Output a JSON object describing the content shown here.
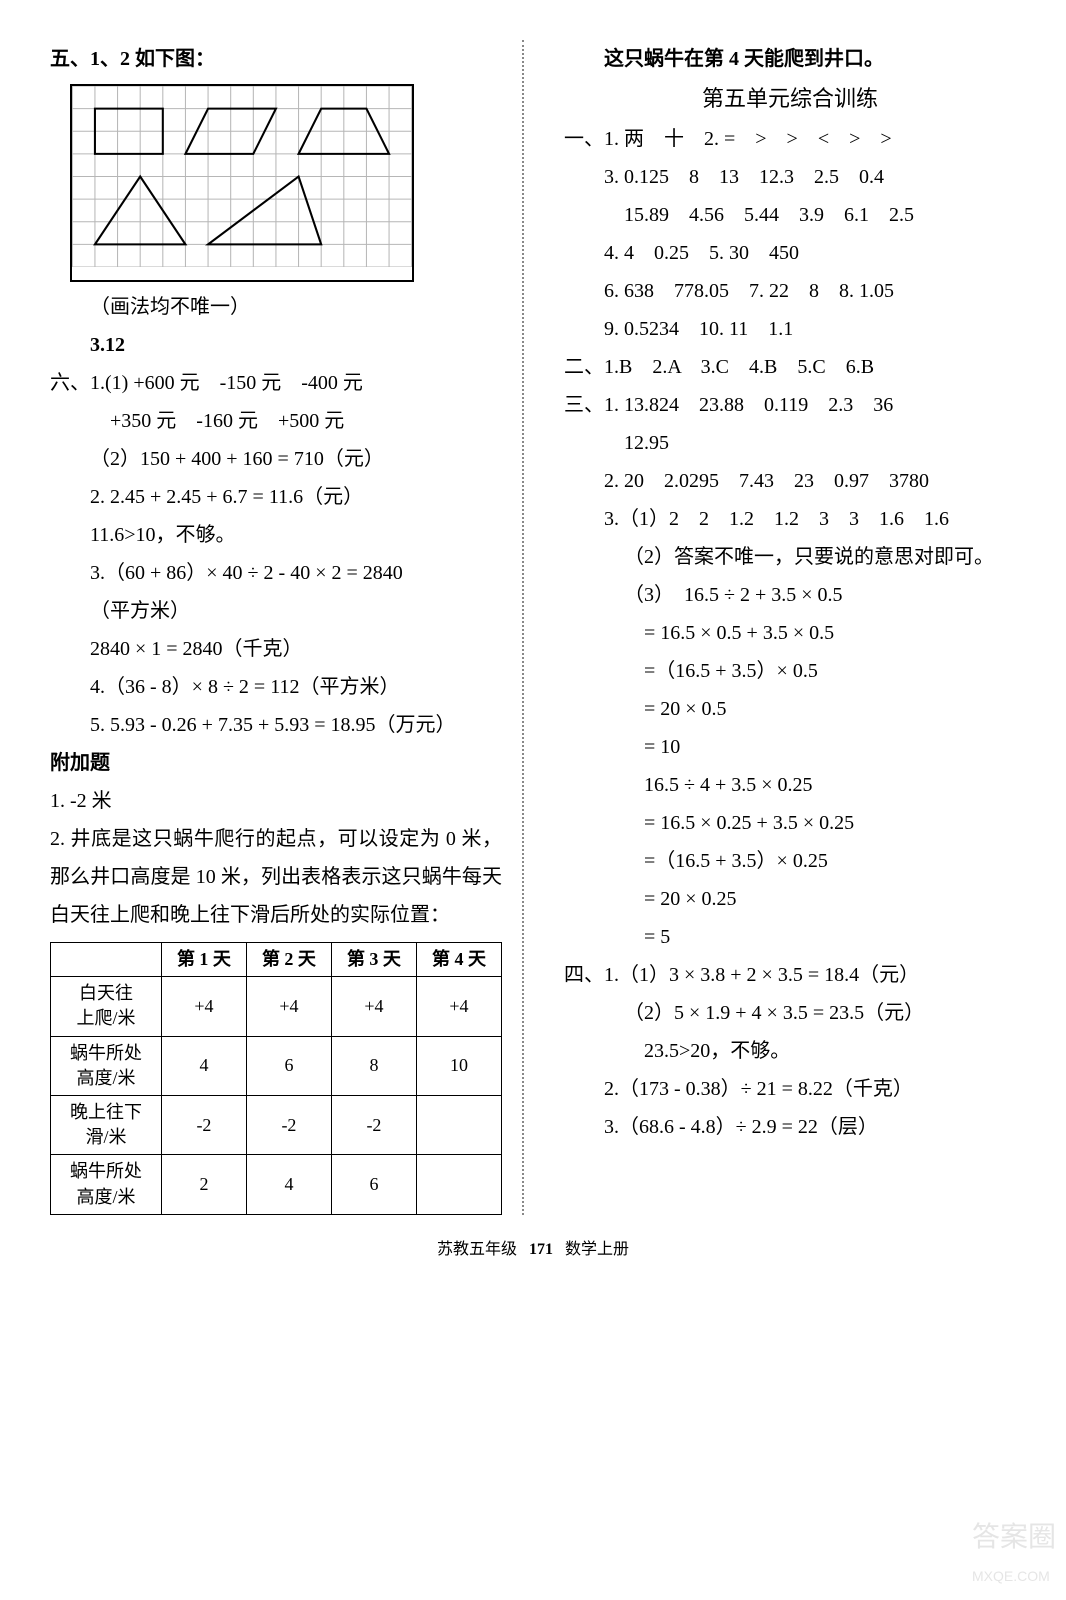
{
  "left": {
    "heading_five": "五、1、2 如下图：",
    "figure_note": "（画法均不唯一）",
    "item_3": "3.12",
    "section_six_head": "六、1.(1) +600 元　-150 元　-400 元",
    "six_1_line2": "+350 元　-160 元　+500 元",
    "six_1_2": "（2）150 + 400 + 160 = 710（元）",
    "six_2a": "2. 2.45 + 2.45 + 6.7 = 11.6（元）",
    "six_2b": "11.6>10，不够。",
    "six_3a": "3.（60 + 86）× 40 ÷ 2 - 40 × 2 = 2840",
    "six_3a_unit": "（平方米）",
    "six_3b": "2840 × 1 = 2840（千克）",
    "six_4": "4.（36 - 8）× 8 ÷ 2 = 112（平方米）",
    "six_5": "5. 5.93 - 0.26 + 7.35 + 5.93 = 18.95（万元）",
    "appendix_title": "附加题",
    "app_1": "1. -2 米",
    "app_2": "2. 井底是这只蜗牛爬行的起点，可以设定为 0 米，那么井口高度是 10 米，列出表格表示这只蜗牛每天白天往上爬和晚上往下滑后所处的实际位置：",
    "table": {
      "headers": [
        "",
        "第 1 天",
        "第 2 天",
        "第 3 天",
        "第 4 天"
      ],
      "rows": [
        [
          "白天往\n上爬/米",
          "+4",
          "+4",
          "+4",
          "+4"
        ],
        [
          "蜗牛所处\n高度/米",
          "4",
          "6",
          "8",
          "10"
        ],
        [
          "晚上往下\n滑/米",
          "-2",
          "-2",
          "-2",
          ""
        ],
        [
          "蜗牛所处\n高度/米",
          "2",
          "4",
          "6",
          ""
        ]
      ]
    },
    "grid": {
      "cols": 15,
      "rows": 8,
      "cell": 22,
      "stroke_grid": "#b6b6b6",
      "stroke_shape": "#000000",
      "stroke_width_shape": 2
    }
  },
  "right": {
    "snail_result": "这只蜗牛在第 4 天能爬到井口。",
    "unit_title": "第五单元综合训练",
    "sec1_1": "一、1. 两　十　2. =　>　>　<　>　>",
    "sec1_3a": "3. 0.125　8　13　12.3　2.5　0.4",
    "sec1_3b": "15.89　4.56　5.44　3.9　6.1　2.5",
    "sec1_4_5": "4. 4　0.25　5. 30　450",
    "sec1_6_8": "6. 638　778.05　7. 22　8　8. 1.05",
    "sec1_9_10": "9. 0.5234　10. 11　1.1",
    "sec2": "二、1.B　2.A　3.C　4.B　5.C　6.B",
    "sec3_1a": "三、1. 13.824　23.88　0.119　2.3　36",
    "sec3_1b": "12.95",
    "sec3_2": "2. 20　2.0295　7.43　23　0.97　3780",
    "sec3_3_1": "3.（1）2　2　1.2　1.2　3　3　1.6　1.6",
    "sec3_3_2": "（2）答案不唯一，只要说的意思对即可。",
    "sec3_3_3_head": "（3）　16.5 ÷ 2 + 3.5 × 0.5",
    "calc1": [
      "= 16.5 × 0.5 + 3.5 × 0.5",
      "=（16.5 + 3.5）× 0.5",
      "= 20 × 0.5",
      "= 10"
    ],
    "calc2_head": "16.5 ÷ 4 + 3.5 × 0.25",
    "calc2": [
      "= 16.5 × 0.25 + 3.5 × 0.25",
      "=（16.5 + 3.5）× 0.25",
      "= 20 × 0.25",
      "= 5"
    ],
    "sec4_1a": "四、1.（1）3 × 3.8 + 2 × 3.5 = 18.4（元）",
    "sec4_1b": "（2）5 × 1.9 + 4 × 3.5 = 23.5（元）",
    "sec4_1c": "23.5>20，不够。",
    "sec4_2": "2.（173 - 0.38）÷ 21 = 8.22（千克）",
    "sec4_3": "3.（68.6 - 4.8）÷ 2.9 = 22（层）"
  },
  "footer": {
    "left": "苏教五年级",
    "page": "171",
    "right": "数学上册"
  },
  "watermark": {
    "main": "答案圈",
    "sub": "MXQE.COM"
  }
}
